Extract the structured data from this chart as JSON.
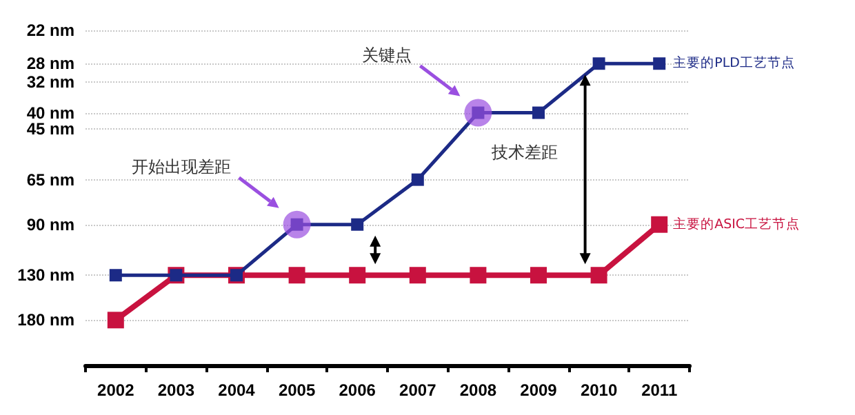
{
  "chart_data": {
    "type": "line",
    "categories": [
      "2002",
      "2003",
      "2004",
      "2005",
      "2006",
      "2007",
      "2008",
      "2009",
      "2010",
      "2011"
    ],
    "series": [
      {
        "name": "主要的PLD工艺节点",
        "color": "#1c2a86",
        "values": [
          130,
          130,
          130,
          90,
          90,
          65,
          40,
          40,
          28,
          28
        ]
      },
      {
        "name": "主要的ASIC工艺节点",
        "color": "#c8123f",
        "values": [
          180,
          130,
          130,
          130,
          130,
          130,
          130,
          130,
          130,
          90
        ]
      }
    ],
    "log": "y",
    "ylim": [
      250,
      22
    ],
    "yticks": [
      {
        "value": 22,
        "label": "22 nm"
      },
      {
        "value": 28,
        "label": "28 nm"
      },
      {
        "value": 32,
        "label": "32 nm"
      },
      {
        "value": 40,
        "label": "40 nm"
      },
      {
        "value": 45,
        "label": "45 nm"
      },
      {
        "value": 65,
        "label": "65 nm"
      },
      {
        "value": 90,
        "label": "90 nm"
      },
      {
        "value": 130,
        "label": "130 nm"
      },
      {
        "value": 180,
        "label": "180 nm"
      }
    ],
    "grid": "y",
    "legend": false,
    "marker": "square",
    "line_style": "solid",
    "annotations": [
      "开始出现差距",
      "关键点",
      "技术差距"
    ]
  }
}
